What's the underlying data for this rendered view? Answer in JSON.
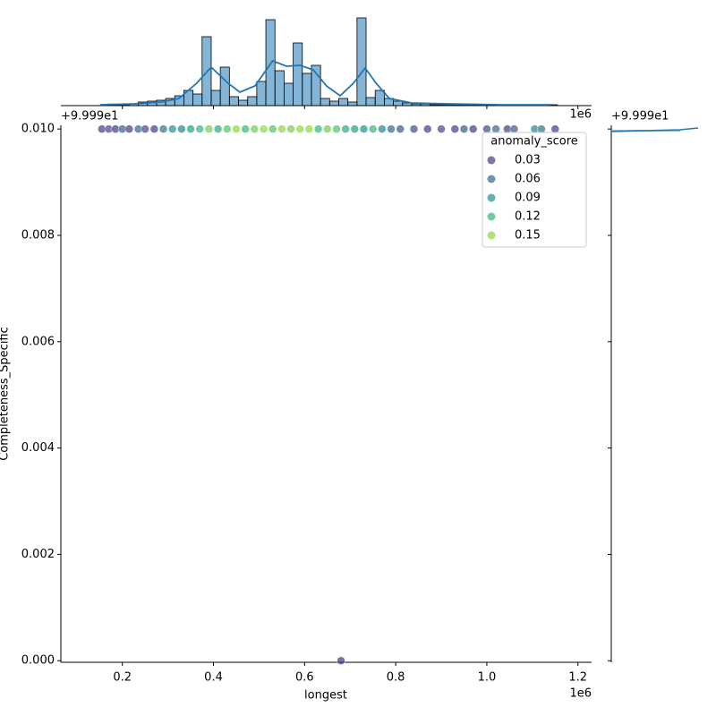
{
  "chart_data": {
    "type": "scatter",
    "x_label": "longest",
    "y_label": "Completeness_Specific",
    "x_offset": "1e6",
    "y_offset": "+9.999e1",
    "xlim": [
      0.065,
      1.23
    ],
    "ylim": [
      -3e-05,
      0.01007
    ],
    "xticks": [
      0.2,
      0.4,
      0.6,
      0.8,
      {
        "value": 1,
        "label": "1.0"
      },
      1.2
    ],
    "yticks": [
      {
        "value": 0,
        "label": "0.000"
      },
      {
        "value": 0.002,
        "label": "0.002"
      },
      {
        "value": 0.004,
        "label": "0.004"
      },
      {
        "value": 0.006,
        "label": "0.006"
      },
      {
        "value": 0.008,
        "label": "0.008"
      },
      {
        "value": 0.01,
        "label": "0.010"
      }
    ],
    "legend": {
      "title": "anomaly_score",
      "position": "upper right",
      "entries": [
        {
          "value": 0.03,
          "label": "0.03",
          "color": "#443983"
        },
        {
          "value": 0.06,
          "label": "0.06",
          "color": "#31688e"
        },
        {
          "value": 0.09,
          "label": "0.09",
          "color": "#21918c"
        },
        {
          "value": 0.12,
          "label": "0.12",
          "color": "#35b779"
        },
        {
          "value": 0.15,
          "label": "0.15",
          "color": "#90d743"
        }
      ]
    },
    "x": [
      0.155,
      0.17,
      0.185,
      0.2,
      0.215,
      0.235,
      0.25,
      0.27,
      0.29,
      0.31,
      0.33,
      0.35,
      0.37,
      0.39,
      0.41,
      0.43,
      0.45,
      0.47,
      0.49,
      0.51,
      0.53,
      0.55,
      0.57,
      0.59,
      0.61,
      0.63,
      0.65,
      0.67,
      0.69,
      0.71,
      0.73,
      0.75,
      0.77,
      0.79,
      0.81,
      0.84,
      0.87,
      0.9,
      0.93,
      0.95,
      0.97,
      1.0,
      1.02,
      1.045,
      1.06,
      1.105,
      1.12,
      1.15,
      0.68
    ],
    "values": [
      0.01,
      0.01,
      0.01,
      0.01,
      0.01,
      0.01,
      0.01,
      0.01,
      0.01,
      0.01,
      0.01,
      0.01,
      0.01,
      0.01,
      0.01,
      0.01,
      0.01,
      0.01,
      0.01,
      0.01,
      0.01,
      0.01,
      0.01,
      0.01,
      0.01,
      0.01,
      0.01,
      0.01,
      0.01,
      0.01,
      0.01,
      0.01,
      0.01,
      0.01,
      0.01,
      0.01,
      0.01,
      0.01,
      0.01,
      0.01,
      0.01,
      0.01,
      0.01,
      0.01,
      0.01,
      0.01,
      0.01,
      0.01,
      0
    ],
    "hue": [
      0.03,
      0.04,
      0.03,
      0.05,
      0.03,
      0.06,
      0.04,
      0.03,
      0.07,
      0.09,
      0.08,
      0.1,
      0.12,
      0.14,
      0.11,
      0.13,
      0.15,
      0.12,
      0.14,
      0.16,
      0.13,
      0.15,
      0.14,
      0.16,
      0.15,
      0.12,
      0.14,
      0.13,
      0.11,
      0.1,
      0.09,
      0.12,
      0.08,
      0.06,
      0.05,
      0.04,
      0.03,
      0.04,
      0.03,
      0.05,
      0.03,
      0.04,
      0.06,
      0.03,
      0.05,
      0.08,
      0.07,
      0.03,
      0.02
    ],
    "top_hist": {
      "color": "#1f77b4",
      "ylim": [
        0,
        100
      ],
      "bins": [
        0.155,
        0.175,
        0.195,
        0.215,
        0.235,
        0.255,
        0.275,
        0.295,
        0.315,
        0.335,
        0.355,
        0.375,
        0.395,
        0.415,
        0.435,
        0.455,
        0.475,
        0.495,
        0.515,
        0.535,
        0.555,
        0.575,
        0.595,
        0.615,
        0.635,
        0.655,
        0.675,
        0.695,
        0.715,
        0.735,
        0.755,
        0.775,
        0.795,
        0.815,
        0.835,
        0.855,
        0.875,
        0.895,
        0.915,
        0.935,
        0.955,
        0.975,
        0.995,
        1.015,
        1.035,
        1.055,
        1.075,
        1.095,
        1.115,
        1.135,
        1.155
      ],
      "counts": [
        1,
        1,
        1,
        2,
        4,
        5,
        6,
        8,
        11,
        17,
        13,
        77,
        17,
        43,
        10,
        6,
        10,
        27,
        96,
        39,
        25,
        70,
        36,
        45,
        8,
        5,
        8,
        4,
        98,
        9,
        17,
        8,
        5,
        3,
        2,
        2,
        1,
        1,
        1,
        1,
        1,
        1,
        1,
        1,
        1,
        1,
        1,
        1,
        1,
        1
      ],
      "kde": {
        "x": [
          0.151,
          0.226,
          0.285,
          0.324,
          0.363,
          0.395,
          0.432,
          0.458,
          0.491,
          0.53,
          0.56,
          0.59,
          0.619,
          0.648,
          0.678,
          0.707,
          0.733,
          0.757,
          0.786,
          0.835,
          0.914,
          1.032,
          1.14
        ],
        "values": [
          1,
          2,
          4,
          8,
          25,
          43,
          25,
          15,
          22,
          50,
          44,
          45,
          40,
          22,
          11,
          25,
          42,
          25,
          8,
          3,
          2,
          1,
          1
        ]
      }
    }
  }
}
